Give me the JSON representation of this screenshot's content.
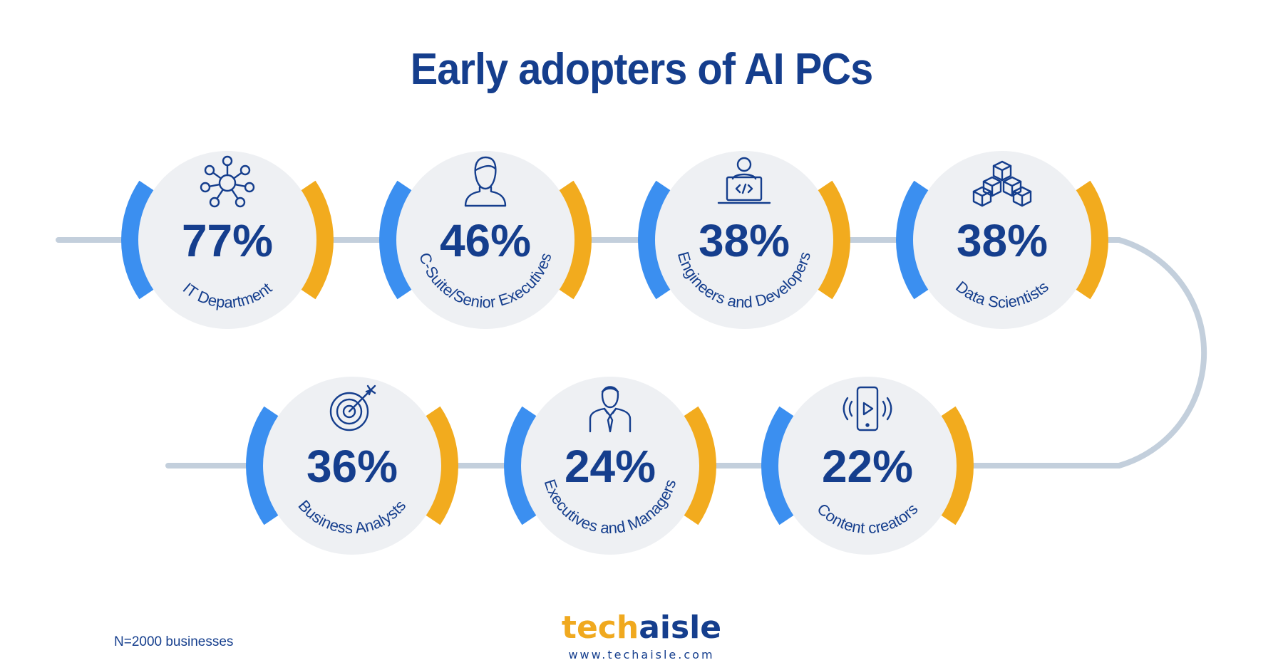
{
  "title": "Early adopters of AI PCs",
  "footnote": "N=2000 businesses",
  "brand": {
    "name_part1": "tech",
    "name_part2": "aisle",
    "url": "www.techaisle.com"
  },
  "colors": {
    "navy": "#153e8d",
    "blue_arc": "#3b8ff0",
    "orange_arc": "#f2ab1e",
    "circle_fill": "#eef0f3",
    "connector": "#c3cfdc"
  },
  "chart_data": {
    "type": "bar",
    "title": "Early adopters of AI PCs",
    "categories": [
      "IT Department",
      "C-Suite/Senior Executives",
      "Engineers and Developers",
      "Data Scientists",
      "Content creators",
      "Executives and Managers",
      "Business Analysts"
    ],
    "values": [
      77,
      46,
      38,
      38,
      22,
      24,
      36
    ],
    "value_suffix": "%",
    "icons": [
      "network-icon",
      "person-icon",
      "developer-laptop-icon",
      "cubes-icon",
      "phone-video-icon",
      "businessman-tie-icon",
      "target-arrow-icon"
    ],
    "note": "N=2000 businesses"
  }
}
